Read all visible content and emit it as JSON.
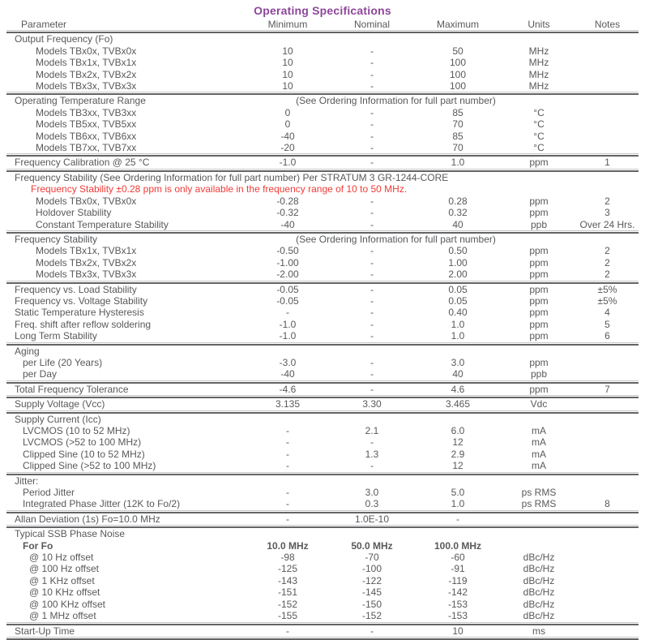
{
  "title": "Operating Specifications",
  "colors": {
    "accent_purple": "#8c4699",
    "note_red": "#ef3c38",
    "text_gray": "#58595b"
  },
  "table": {
    "columns": [
      "Parameter",
      "Minimum",
      "Nominal",
      "Maximum",
      "Units",
      "Notes"
    ],
    "sections": [
      {
        "header": {
          "label": "Output Frequency (Fo)"
        },
        "rows": [
          {
            "param": "Models TBx0x, TVBx0x",
            "indent": 3,
            "min": "10",
            "nom": "-",
            "max": "50",
            "units": "MHz",
            "notes": ""
          },
          {
            "param": "Models TBx1x, TVBx1x",
            "indent": 3,
            "min": "10",
            "nom": "-",
            "max": "100",
            "units": "MHz",
            "notes": ""
          },
          {
            "param": "Models TBx2x, TVBx2x",
            "indent": 3,
            "min": "10",
            "nom": "-",
            "max": "100",
            "units": "MHz",
            "notes": ""
          },
          {
            "param": "Models TBx3x, TVBx3x",
            "indent": 3,
            "min": "10",
            "nom": "-",
            "max": "100",
            "units": "MHz",
            "notes": ""
          }
        ]
      },
      {
        "header": {
          "label": "Operating Temperature Range",
          "span_note": "(See Ordering Information for full part number)"
        },
        "rows": [
          {
            "param": "Models TB3xx, TVB3xx",
            "indent": 3,
            "min": "0",
            "nom": "-",
            "max": "85",
            "units": "°C",
            "notes": ""
          },
          {
            "param": "Models TB5xx, TVB5xx",
            "indent": 3,
            "min": "0",
            "nom": "-",
            "max": "70",
            "units": "°C",
            "notes": ""
          },
          {
            "param": "Models TB6xx, TVB6xx",
            "indent": 3,
            "min": "-40",
            "nom": "-",
            "max": "85",
            "units": "°C",
            "notes": ""
          },
          {
            "param": "Models TB7xx, TVB7xx",
            "indent": 3,
            "min": "-20",
            "nom": "-",
            "max": "70",
            "units": "°C",
            "notes": ""
          }
        ]
      },
      {
        "rows": [
          {
            "param": "Frequency Calibration @ 25 °C",
            "indent": 0,
            "min": "-1.0",
            "nom": "-",
            "max": "1.0",
            "units": "ppm",
            "notes": "1"
          }
        ]
      },
      {
        "header": {
          "label": "Frequency Stability (See Ordering Information for full part number) Per STRATUM 3 GR-1244-CORE",
          "full_width": true,
          "note": "Frequency Stability ±0.28 ppm is only available in the frequency range of 10 to 50 MHz."
        },
        "rows": [
          {
            "param": "Models TBx0x, TVBx0x",
            "indent": 3,
            "min": "-0.28",
            "nom": "-",
            "max": "0.28",
            "units": "ppm",
            "notes": "2"
          },
          {
            "param": "Holdover Stability",
            "indent": 3,
            "min": "-0.32",
            "nom": "-",
            "max": "0.32",
            "units": "ppm",
            "notes": "3"
          },
          {
            "param": "Constant Temperature Stability",
            "indent": 3,
            "min": "-40",
            "nom": "-",
            "max": "40",
            "units": "ppb",
            "notes": "Over 24 Hrs."
          }
        ]
      },
      {
        "header": {
          "label": "Frequency Stability",
          "span_note": "(See Ordering Information for full part number)"
        },
        "rows": [
          {
            "param": "Models TBx1x, TVBx1x",
            "indent": 3,
            "min": "-0.50",
            "nom": "-",
            "max": "0.50",
            "units": "ppm",
            "notes": "2"
          },
          {
            "param": "Models TBx2x, TVBx2x",
            "indent": 3,
            "min": "-1.00",
            "nom": "-",
            "max": "1.00",
            "units": "ppm",
            "notes": "2"
          },
          {
            "param": "Models TBx3x, TVBx3x",
            "indent": 3,
            "min": "-2.00",
            "nom": "-",
            "max": "2.00",
            "units": "ppm",
            "notes": "2"
          }
        ]
      },
      {
        "rows": [
          {
            "param": "Frequency vs. Load Stability",
            "indent": 0,
            "min": "-0.05",
            "nom": "-",
            "max": "0.05",
            "units": "ppm",
            "notes": "±5%"
          },
          {
            "param": "Frequency vs. Voltage Stability",
            "indent": 0,
            "min": "-0.05",
            "nom": "-",
            "max": "0.05",
            "units": "ppm",
            "notes": "±5%"
          },
          {
            "param": "Static Temperature Hysteresis",
            "indent": 0,
            "min": "-",
            "nom": "-",
            "max": "0.40",
            "units": "ppm",
            "notes": "4"
          },
          {
            "param": "Freq. shift after reflow soldering",
            "indent": 0,
            "min": "-1.0",
            "nom": "-",
            "max": "1.0",
            "units": "ppm",
            "notes": "5"
          },
          {
            "param": "Long Term Stability",
            "indent": 0,
            "min": "-1.0",
            "nom": "-",
            "max": "1.0",
            "units": "ppm",
            "notes": "6"
          }
        ]
      },
      {
        "header": {
          "label": "Aging"
        },
        "rows": [
          {
            "param": "per Life (20 Years)",
            "indent": 1,
            "min": "-3.0",
            "nom": "-",
            "max": "3.0",
            "units": "ppm",
            "notes": ""
          },
          {
            "param": "per Day",
            "indent": 1,
            "min": "-40",
            "nom": "-",
            "max": "40",
            "units": "ppb",
            "notes": ""
          }
        ]
      },
      {
        "rows": [
          {
            "param": "Total Frequency Tolerance",
            "indent": 0,
            "min": "-4.6",
            "nom": "-",
            "max": "4.6",
            "units": "ppm",
            "notes": "7"
          }
        ]
      },
      {
        "rows": [
          {
            "param": "Supply Voltage (Vcc)",
            "indent": 0,
            "min": "3.135",
            "nom": "3.30",
            "max": "3.465",
            "units": "Vdc",
            "notes": ""
          }
        ]
      },
      {
        "header": {
          "label": "Supply Current (Icc)"
        },
        "rows": [
          {
            "param": "LVCMOS (10 to 52 MHz)",
            "indent": 1,
            "min": "-",
            "nom": "2.1",
            "max": "6.0",
            "units": "mA",
            "notes": ""
          },
          {
            "param": "LVCMOS (>52 to 100 MHz)",
            "indent": 1,
            "min": "-",
            "nom": "-",
            "max": "12",
            "units": "mA",
            "notes": ""
          },
          {
            "param": "Clipped Sine (10 to 52 MHz)",
            "indent": 1,
            "min": "-",
            "nom": "1.3",
            "max": "2.9",
            "units": "mA",
            "notes": ""
          },
          {
            "param": "Clipped Sine (>52 to 100 MHz)",
            "indent": 1,
            "min": "-",
            "nom": "-",
            "max": "12",
            "units": "mA",
            "notes": ""
          }
        ]
      },
      {
        "header": {
          "label": "Jitter:"
        },
        "rows": [
          {
            "param": "Period Jitter",
            "indent": 1,
            "min": "-",
            "nom": "3.0",
            "max": "5.0",
            "units": "ps RMS",
            "notes": ""
          },
          {
            "param": "Integrated Phase Jitter (12K to Fo/2)",
            "indent": 1,
            "min": "-",
            "nom": "0.3",
            "max": "1.0",
            "units": "ps RMS",
            "notes": "8"
          }
        ]
      },
      {
        "rows": [
          {
            "param": "Allan Deviation (1s) Fo=10.0 MHz",
            "indent": 0,
            "min": "-",
            "nom": "1.0E-10",
            "max": "-",
            "units": "",
            "notes": ""
          }
        ]
      },
      {
        "header": {
          "label": "Typical SSB Phase Noise"
        },
        "rows": [
          {
            "param": "For Fo",
            "indent": 1,
            "bold": true,
            "min": "10.0 MHz",
            "nom": "50.0 MHz",
            "max": "100.0 MHz",
            "units": "",
            "notes": ""
          },
          {
            "param": "@ 10 Hz offset",
            "indent": 2,
            "min": "-98",
            "nom": "-70",
            "max": "-60",
            "units": "dBc/Hz",
            "notes": ""
          },
          {
            "param": "@ 100 Hz offset",
            "indent": 2,
            "min": "-125",
            "nom": "-100",
            "max": "-91",
            "units": "dBc/Hz",
            "notes": ""
          },
          {
            "param": "@ 1 KHz offset",
            "indent": 2,
            "min": "-143",
            "nom": "-122",
            "max": "-119",
            "units": "dBc/Hz",
            "notes": ""
          },
          {
            "param": "@ 10 KHz offset",
            "indent": 2,
            "min": "-151",
            "nom": "-145",
            "max": "-142",
            "units": "dBc/Hz",
            "notes": ""
          },
          {
            "param": "@ 100 KHz offset",
            "indent": 2,
            "min": "-152",
            "nom": "-150",
            "max": "-153",
            "units": "dBc/Hz",
            "notes": ""
          },
          {
            "param": "@ 1 MHz offset",
            "indent": 2,
            "min": "-155",
            "nom": "-152",
            "max": "-153",
            "units": "dBc/Hz",
            "notes": ""
          }
        ]
      },
      {
        "rows": [
          {
            "param": "Start-Up Time",
            "indent": 0,
            "min": "-",
            "nom": "-",
            "max": "10",
            "units": "ms",
            "notes": ""
          }
        ]
      }
    ]
  }
}
